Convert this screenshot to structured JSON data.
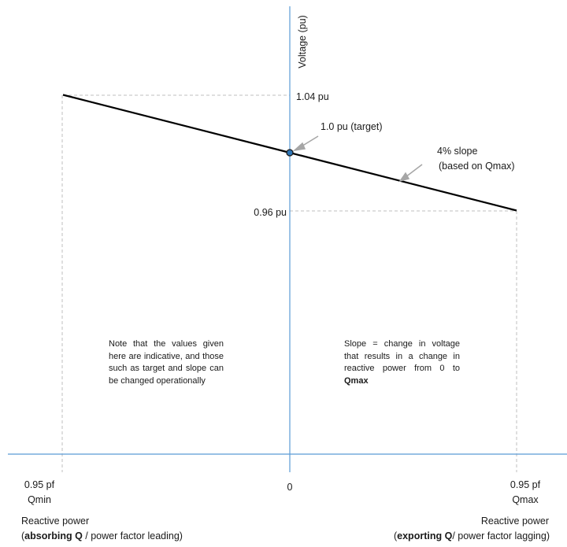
{
  "axes": {
    "y_label": "Voltage (pu)",
    "x_label_left": "Reactive power",
    "x_label_right": "Reactive power"
  },
  "chart_data": {
    "type": "line",
    "x_ticks": {
      "left": "0.95 pf",
      "left_sub": "Qmin",
      "center": "0",
      "right": "0.95 pf",
      "right_sub": "Qmax"
    },
    "series": [
      {
        "points": [
          {
            "x": -1,
            "y": 1.04
          },
          {
            "x": 0,
            "y": 1.0
          },
          {
            "x": 1,
            "y": 0.96
          }
        ]
      }
    ],
    "y_ticks": [
      "1.04 pu",
      "0.96 pu"
    ],
    "ylim": [
      0.8,
      1.1
    ],
    "xlim": [
      -1.2,
      1.2
    ]
  },
  "annotations": {
    "target": "1.0 pu (target)",
    "slope_line1": "4% slope",
    "slope_line2": "(based on Qmax)"
  },
  "notes": {
    "left": "Note that the values given here are indicative, and those such as target and slope can be changed operationally",
    "right_text": "Slope = change in voltage that results in a change in reactive power from 0 to ",
    "right_bold": "Qmax"
  },
  "footer": {
    "left_bold": "absorbing Q",
    "left_rest": " / power factor leading)",
    "left_open": "(",
    "right_open": "(",
    "right_bold": "exporting Q",
    "right_rest": "/ power factor lagging)"
  },
  "colors": {
    "axis": "#5b9bd5",
    "line": "#000000",
    "guide": "#bfbfbf",
    "arrow": "#a6a6a6",
    "marker_fill": "#2e75b6"
  }
}
